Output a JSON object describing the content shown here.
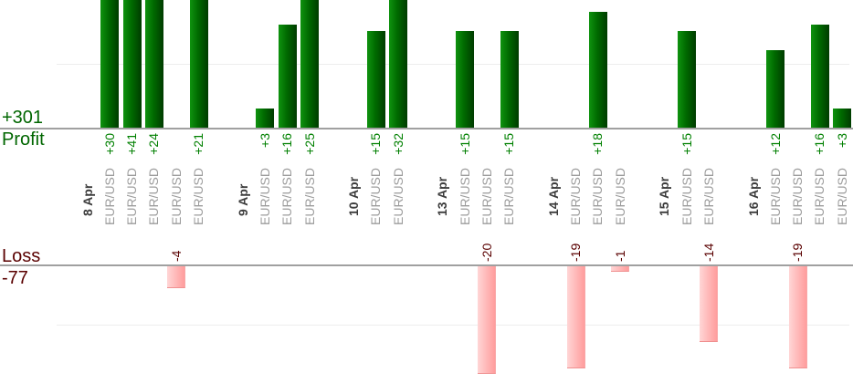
{
  "chart_data": {
    "type": "bar",
    "title": "",
    "profit_axis_label": "Profit",
    "profit_total": "+301",
    "loss_axis_label": "Loss",
    "loss_total": "-77",
    "grid": true,
    "groups": [
      {
        "date": "8 Apr",
        "trades": [
          {
            "symbol": "EUR/USD",
            "value": 30
          },
          {
            "symbol": "EUR/USD",
            "value": 41
          },
          {
            "symbol": "EUR/USD",
            "value": 24
          },
          {
            "symbol": "EUR/USD",
            "value": -4
          },
          {
            "symbol": "EUR/USD",
            "value": 21
          }
        ]
      },
      {
        "date": "9 Apr",
        "trades": [
          {
            "symbol": "EUR/USD",
            "value": 3
          },
          {
            "symbol": "EUR/USD",
            "value": 16
          },
          {
            "symbol": "EUR/USD",
            "value": 25
          }
        ]
      },
      {
        "date": "10 Apr",
        "trades": [
          {
            "symbol": "EUR/USD",
            "value": 15
          },
          {
            "symbol": "EUR/USD",
            "value": 32
          }
        ]
      },
      {
        "date": "13 Apr",
        "trades": [
          {
            "symbol": "EUR/USD",
            "value": 15
          },
          {
            "symbol": "EUR/USD",
            "value": -20
          },
          {
            "symbol": "EUR/USD",
            "value": 15
          }
        ]
      },
      {
        "date": "14 Apr",
        "trades": [
          {
            "symbol": "EUR/USD",
            "value": -19
          },
          {
            "symbol": "EUR/USD",
            "value": 18
          },
          {
            "symbol": "EUR/USD",
            "value": -1
          }
        ]
      },
      {
        "date": "15 Apr",
        "trades": [
          {
            "symbol": "EUR/USD",
            "value": 15
          },
          {
            "symbol": "EUR/USD",
            "value": -14
          }
        ]
      },
      {
        "date": "16 Apr",
        "trades": [
          {
            "symbol": "EUR/USD",
            "value": 12
          },
          {
            "symbol": "EUR/USD",
            "value": -19
          },
          {
            "symbol": "EUR/USD",
            "value": 16
          },
          {
            "symbol": "EUR/USD",
            "value": 3
          }
        ]
      }
    ],
    "colors": {
      "profit_total_text": "#006600",
      "profit_value_text": "#008000",
      "loss_text": "#5a0000",
      "date_text": "#3c3c3c",
      "symbol_text": "#9c9c9c",
      "axis": "#a0a0a0",
      "gridline": "#ededed",
      "bar_green_light": "#0f930f",
      "bar_green_mid": "#006a00",
      "bar_green_dark": "#003c00",
      "bar_pink_light": "#ffd6d6",
      "bar_pink_mid": "#ffb9b9",
      "bar_pink_dark": "#ff9d9d"
    }
  }
}
